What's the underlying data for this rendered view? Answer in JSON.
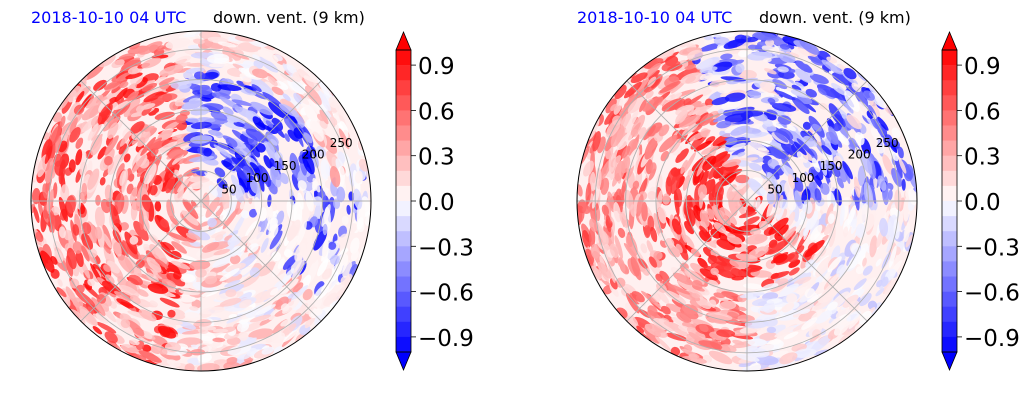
{
  "colors": {
    "positive": "#ff0000",
    "negative": "#0000ff",
    "neutral": "#ffffff",
    "title_time": "#0000ff"
  },
  "chart_data": [
    {
      "type": "heatmap",
      "projection": "polar",
      "title_left": "2018-10-10 04 UTC",
      "title_right": "down. vent. (9 km)",
      "radial_ticks": [
        "50",
        "100",
        "150",
        "200",
        "250"
      ],
      "radial_values": [
        50,
        100,
        150,
        200,
        250
      ],
      "colorbar": {
        "ticks": [
          "0.9",
          "0.6",
          "0.3",
          "0.0",
          "−0.3",
          "−0.6",
          "−0.9"
        ],
        "tick_values": [
          0.9,
          0.6,
          0.3,
          0.0,
          -0.3,
          -0.6,
          -0.9
        ],
        "range": [
          -1.0,
          1.0
        ],
        "extend": "both",
        "colormap": "bwr"
      }
    },
    {
      "type": "heatmap",
      "projection": "polar",
      "title_left": "2018-10-10 04 UTC",
      "title_right": "down. vent. (9 km)",
      "radial_ticks": [
        "50",
        "100",
        "150",
        "200",
        "250"
      ],
      "radial_values": [
        50,
        100,
        150,
        200,
        250
      ],
      "colorbar": {
        "ticks": [
          "0.9",
          "0.6",
          "0.3",
          "0.0",
          "−0.3",
          "−0.6",
          "−0.9"
        ],
        "tick_values": [
          0.9,
          0.6,
          0.3,
          0.0,
          -0.3,
          -0.6,
          -0.9
        ],
        "range": [
          -1.0,
          1.0
        ],
        "extend": "both",
        "colormap": "bwr"
      }
    }
  ]
}
